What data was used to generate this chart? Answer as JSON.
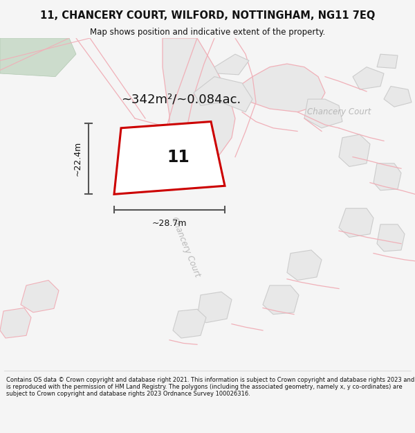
{
  "title_line1": "11, CHANCERY COURT, WILFORD, NOTTINGHAM, NG11 7EQ",
  "title_line2": "Map shows position and indicative extent of the property.",
  "area_text": "~342m²/~0.084ac.",
  "dim_width": "~28.7m",
  "dim_height": "~22.4m",
  "property_number": "11",
  "street_label_diag": "Chancery Court",
  "street_label_horiz": "Chancery Court",
  "footer_text": "Contains OS data © Crown copyright and database right 2021. This information is subject to Crown copyright and database rights 2023 and is reproduced with the permission of HM Land Registry. The polygons (including the associated geometry, namely x, y co-ordinates) are subject to Crown copyright and database rights 2023 Ordnance Survey 100026316.",
  "bg_color": "#f5f5f5",
  "map_bg": "#ffffff",
  "property_fill": "#ffffff",
  "property_edge": "#cc0000",
  "bldg_fill": "#e8e8e8",
  "bldg_edge": "#cccccc",
  "road_fill": "#e8e8e8",
  "road_edge": "#e8a0a8",
  "green_fill": "#ccdccc",
  "green_edge": "#b0c8b0",
  "dim_color": "#555555",
  "text_dark": "#111111",
  "text_light": "#bbbbbb",
  "pink_line": "#f0b0b8"
}
